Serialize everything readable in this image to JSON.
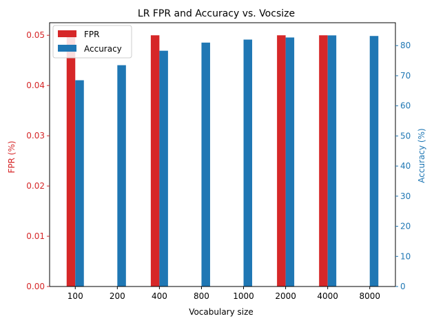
{
  "chart_data": {
    "type": "bar",
    "title": "LR FPR and Accuracy vs. Vocsize",
    "xlabel": "Vocabulary size",
    "ylabel_left": "FPR (%)",
    "ylabel_right": "Accuracy (%)",
    "categories": [
      "100",
      "200",
      "400",
      "800",
      "1000",
      "2000",
      "4000",
      "8000"
    ],
    "series": [
      {
        "name": "FPR",
        "axis": "left",
        "color": "#d62728",
        "values": [
          0.05,
          0.0,
          0.05,
          0.0,
          0.0,
          0.05,
          0.05,
          0.0
        ]
      },
      {
        "name": "Accuracy",
        "axis": "right",
        "color": "#1f77b4",
        "values": [
          68.5,
          73.5,
          78.3,
          81.0,
          82.0,
          82.7,
          83.4,
          83.2
        ]
      }
    ],
    "ylim_left": [
      0,
      0.0525
    ],
    "yticks_left": [
      0.0,
      0.01,
      0.02,
      0.03,
      0.04,
      0.05
    ],
    "ytick_labels_left": [
      "0.00",
      "0.01",
      "0.02",
      "0.03",
      "0.04",
      "0.05"
    ],
    "ylim_right": [
      0,
      87.6
    ],
    "yticks_right": [
      0,
      10,
      20,
      30,
      40,
      50,
      60,
      70,
      80
    ],
    "ytick_labels_right": [
      "0",
      "10",
      "20",
      "30",
      "40",
      "50",
      "60",
      "70",
      "80"
    ],
    "grid": false,
    "legend_position": "top-left",
    "left_axis_color": "#d62728",
    "right_axis_color": "#1f77b4"
  }
}
